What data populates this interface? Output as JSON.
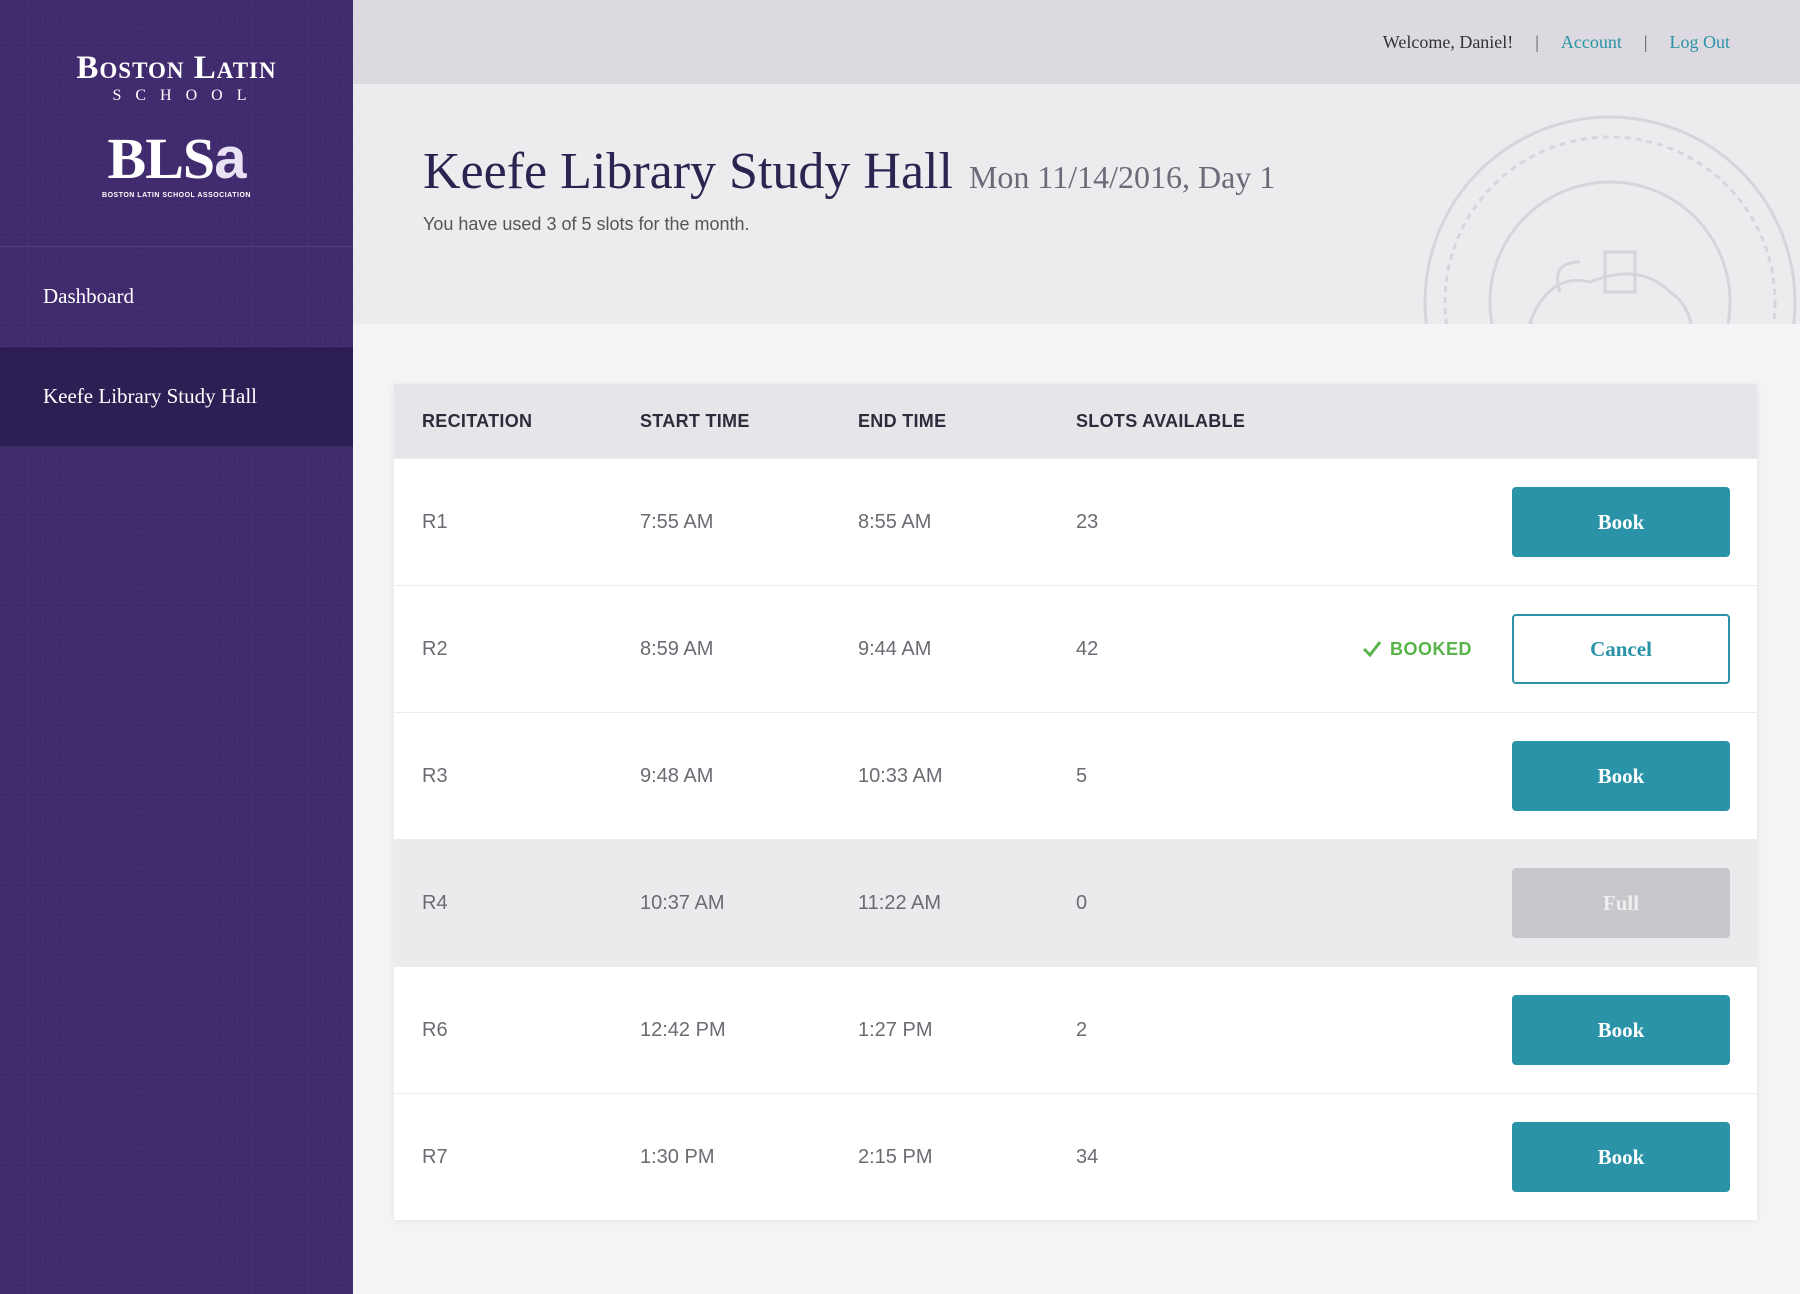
{
  "brand": {
    "name": "Boston Latin",
    "sub": "SCHOOL",
    "mark": "BLS",
    "mark_letter": "a",
    "assoc": "BOSTON LATIN SCHOOL ASSOCIATION"
  },
  "sidebar": {
    "items": [
      {
        "label": "Dashboard",
        "active": false
      },
      {
        "label": "Keefe Library Study Hall",
        "active": true
      }
    ]
  },
  "topbar": {
    "welcome": "Welcome, Daniel!",
    "separator": "|",
    "account": "Account",
    "logout": "Log Out"
  },
  "header": {
    "title": "Keefe Library Study Hall",
    "date": "Mon 11/14/2016, Day 1",
    "usage": "You have used 3 of 5 slots for the month."
  },
  "table": {
    "columns": [
      "RECITATION",
      "START TIME",
      "END TIME",
      "SLOTS AVAILABLE"
    ],
    "rows": [
      {
        "recitation": "R1",
        "start": "7:55 AM",
        "end": "8:55 AM",
        "slots": "23",
        "action": "Book",
        "state": "book"
      },
      {
        "recitation": "R2",
        "start": "8:59 AM",
        "end": "9:44 AM",
        "slots": "42",
        "action": "Cancel",
        "state": "cancel",
        "status": "BOOKED"
      },
      {
        "recitation": "R3",
        "start": "9:48 AM",
        "end": "10:33 AM",
        "slots": "5",
        "action": "Book",
        "state": "book"
      },
      {
        "recitation": "R4",
        "start": "10:37 AM",
        "end": "11:22 AM",
        "slots": "0",
        "action": "Full",
        "state": "full"
      },
      {
        "recitation": "R6",
        "start": "12:42 PM",
        "end": "1:27 PM",
        "slots": "2",
        "action": "Book",
        "state": "book"
      },
      {
        "recitation": "R7",
        "start": "1:30 PM",
        "end": "2:15 PM",
        "slots": "34",
        "action": "Book",
        "state": "book"
      }
    ]
  },
  "colors": {
    "sidebar": "#3f2b6e",
    "sidebar_active": "#2d1f54",
    "accent": "#2b93a7",
    "booked": "#58b34a"
  },
  "icons": {
    "booked": "checkmark-icon",
    "seal": "school-seal-icon"
  }
}
